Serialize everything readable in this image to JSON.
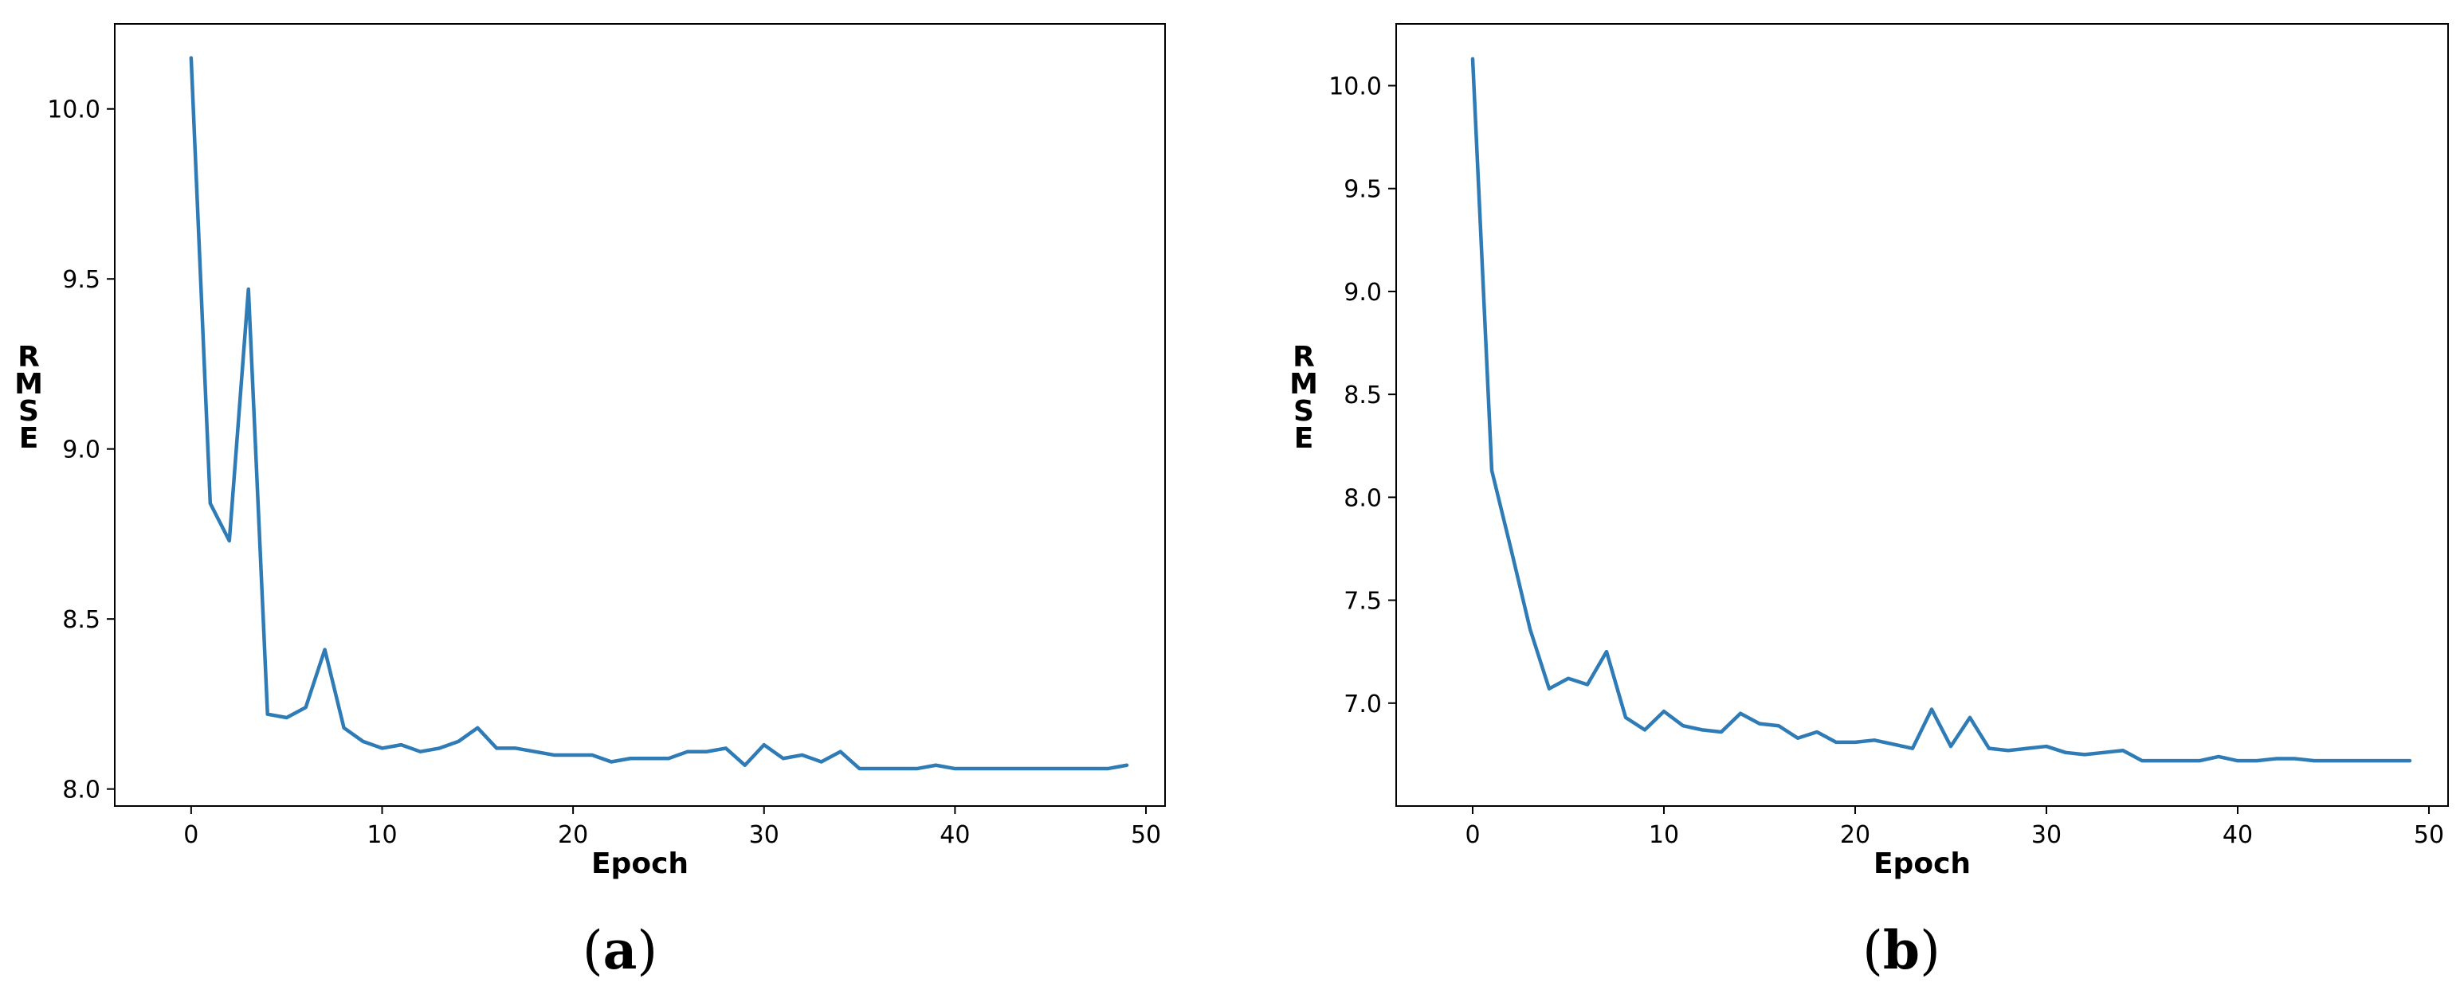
{
  "chart_data": [
    {
      "type": "line",
      "panel_label": "a",
      "xlabel": "Epoch",
      "ylabel": "RMSE",
      "xlim": [
        -4,
        51
      ],
      "ylim": [
        7.95,
        10.25
      ],
      "xticks": [
        0,
        10,
        20,
        30,
        40,
        50
      ],
      "yticks": [
        8.0,
        8.5,
        9.0,
        9.5,
        10.0
      ],
      "grid": false,
      "series": [
        {
          "color": "#2e7bb6",
          "x": [
            0,
            1,
            2,
            3,
            4,
            5,
            6,
            7,
            8,
            9,
            10,
            11,
            12,
            13,
            14,
            15,
            16,
            17,
            18,
            19,
            20,
            21,
            22,
            23,
            24,
            25,
            26,
            27,
            28,
            29,
            30,
            31,
            32,
            33,
            34,
            35,
            36,
            37,
            38,
            39,
            40,
            41,
            42,
            43,
            44,
            45,
            46,
            47,
            48,
            49
          ],
          "y": [
            10.15,
            8.84,
            8.73,
            9.47,
            8.22,
            8.21,
            8.24,
            8.41,
            8.18,
            8.14,
            8.12,
            8.13,
            8.11,
            8.12,
            8.14,
            8.18,
            8.12,
            8.12,
            8.11,
            8.1,
            8.1,
            8.1,
            8.08,
            8.09,
            8.09,
            8.09,
            8.11,
            8.11,
            8.12,
            8.07,
            8.13,
            8.09,
            8.1,
            8.08,
            8.11,
            8.06,
            8.06,
            8.06,
            8.06,
            8.07,
            8.06,
            8.06,
            8.06,
            8.06,
            8.06,
            8.06,
            8.06,
            8.06,
            8.06,
            8.07
          ]
        }
      ]
    },
    {
      "type": "line",
      "panel_label": "b",
      "xlabel": "Epoch",
      "ylabel": "RMSE",
      "xlim": [
        -4,
        51
      ],
      "ylim": [
        6.5,
        10.3
      ],
      "xticks": [
        0,
        10,
        20,
        30,
        40,
        50
      ],
      "yticks": [
        7.0,
        7.5,
        8.0,
        8.5,
        9.0,
        9.5,
        10.0
      ],
      "grid": false,
      "series": [
        {
          "color": "#2e7bb6",
          "x": [
            0,
            1,
            2,
            3,
            4,
            5,
            6,
            7,
            8,
            9,
            10,
            11,
            12,
            13,
            14,
            15,
            16,
            17,
            18,
            19,
            20,
            21,
            22,
            23,
            24,
            25,
            26,
            27,
            28,
            29,
            30,
            31,
            32,
            33,
            34,
            35,
            36,
            37,
            38,
            39,
            40,
            41,
            42,
            43,
            44,
            45,
            46,
            47,
            48,
            49
          ],
          "y": [
            10.13,
            8.13,
            7.75,
            7.36,
            7.07,
            7.12,
            7.09,
            7.25,
            6.93,
            6.87,
            6.96,
            6.89,
            6.87,
            6.86,
            6.95,
            6.9,
            6.89,
            6.83,
            6.86,
            6.81,
            6.81,
            6.82,
            6.8,
            6.78,
            6.97,
            6.79,
            6.93,
            6.78,
            6.77,
            6.78,
            6.79,
            6.76,
            6.75,
            6.76,
            6.77,
            6.72,
            6.72,
            6.72,
            6.72,
            6.74,
            6.72,
            6.72,
            6.73,
            6.73,
            6.72,
            6.72,
            6.72,
            6.72,
            6.72,
            6.72
          ]
        }
      ]
    }
  ]
}
